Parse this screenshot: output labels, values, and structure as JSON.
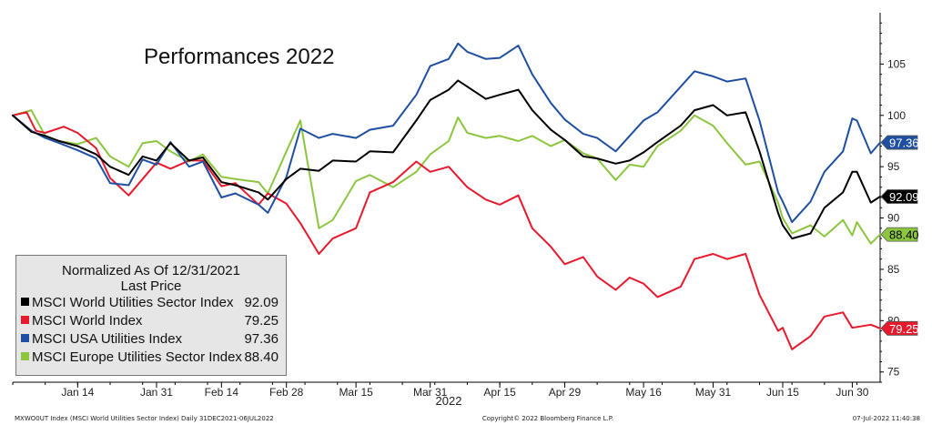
{
  "chart_data": {
    "type": "line",
    "title": "Performances 2022",
    "year_label": "2022",
    "x_tick_labels": [
      "Jan 14",
      "Jan 31",
      "Feb 14",
      "Feb 28",
      "Mar 15",
      "Mar 31",
      "Apr 15",
      "Apr 29",
      "May 16",
      "May 31",
      "Jun 15",
      "Jun 30"
    ],
    "x_tick_dates": [
      "2022-01-14",
      "2022-01-31",
      "2022-02-14",
      "2022-02-28",
      "2022-03-15",
      "2022-03-31",
      "2022-04-15",
      "2022-04-29",
      "2022-05-16",
      "2022-05-31",
      "2022-06-15",
      "2022-06-30"
    ],
    "xlim": [
      "2021-12-31",
      "2022-07-06"
    ],
    "ylim": [
      74,
      110
    ],
    "y_ticks": [
      75,
      80,
      85,
      90,
      95,
      100,
      105
    ],
    "y_axis_side": "right",
    "grid": false,
    "legend": {
      "position": "bottom-left",
      "heading": "Normalized As Of 12/31/2021",
      "subheading": "Last Price"
    },
    "series": [
      {
        "name": "MSCI World Utilities Sector Index",
        "color": "#000000",
        "last_value": "92.09",
        "points": [
          [
            "2021-12-31",
            100
          ],
          [
            "2022-01-04",
            98.4
          ],
          [
            "2022-01-07",
            98.0
          ],
          [
            "2022-01-10",
            97.5
          ],
          [
            "2022-01-14",
            97.0
          ],
          [
            "2022-01-18",
            96.2
          ],
          [
            "2022-01-21",
            95.0
          ],
          [
            "2022-01-25",
            94.2
          ],
          [
            "2022-01-28",
            96.0
          ],
          [
            "2022-01-31",
            95.6
          ],
          [
            "2022-02-03",
            97.3
          ],
          [
            "2022-02-07",
            95.6
          ],
          [
            "2022-02-10",
            95.9
          ],
          [
            "2022-02-14",
            93.5
          ],
          [
            "2022-02-17",
            93.2
          ],
          [
            "2022-02-22",
            92.5
          ],
          [
            "2022-02-24",
            91.8
          ],
          [
            "2022-02-28",
            93.8
          ],
          [
            "2022-03-03",
            94.8
          ],
          [
            "2022-03-07",
            94.6
          ],
          [
            "2022-03-10",
            95.6
          ],
          [
            "2022-03-15",
            95.5
          ],
          [
            "2022-03-18",
            96.5
          ],
          [
            "2022-03-23",
            96.4
          ],
          [
            "2022-03-28",
            99.5
          ],
          [
            "2022-03-31",
            101.5
          ],
          [
            "2022-04-04",
            102.5
          ],
          [
            "2022-04-06",
            103.4
          ],
          [
            "2022-04-08",
            102.8
          ],
          [
            "2022-04-12",
            101.6
          ],
          [
            "2022-04-15",
            102.0
          ],
          [
            "2022-04-19",
            102.5
          ],
          [
            "2022-04-22",
            100.5
          ],
          [
            "2022-04-26",
            98.6
          ],
          [
            "2022-04-29",
            97.6
          ],
          [
            "2022-05-03",
            96.0
          ],
          [
            "2022-05-06",
            95.8
          ],
          [
            "2022-05-10",
            95.3
          ],
          [
            "2022-05-13",
            95.6
          ],
          [
            "2022-05-16",
            96.4
          ],
          [
            "2022-05-19",
            97.4
          ],
          [
            "2022-05-24",
            99.0
          ],
          [
            "2022-05-27",
            100.5
          ],
          [
            "2022-05-31",
            101.0
          ],
          [
            "2022-06-03",
            100.0
          ],
          [
            "2022-06-07",
            100.3
          ],
          [
            "2022-06-10",
            96.5
          ],
          [
            "2022-06-14",
            90.5
          ],
          [
            "2022-06-15",
            89.3
          ],
          [
            "2022-06-17",
            88.0
          ],
          [
            "2022-06-21",
            88.5
          ],
          [
            "2022-06-24",
            91.0
          ],
          [
            "2022-06-28",
            92.5
          ],
          [
            "2022-06-30",
            94.5
          ],
          [
            "2022-07-01",
            94.5
          ],
          [
            "2022-07-04",
            91.5
          ],
          [
            "2022-07-06",
            92.09
          ]
        ]
      },
      {
        "name": "MSCI World Index",
        "color": "#e8192c",
        "last_value": "79.25",
        "points": [
          [
            "2021-12-31",
            100
          ],
          [
            "2022-01-03",
            100.3
          ],
          [
            "2022-01-05",
            98.5
          ],
          [
            "2022-01-07",
            98.3
          ],
          [
            "2022-01-11",
            98.9
          ],
          [
            "2022-01-14",
            98.3
          ],
          [
            "2022-01-18",
            96.8
          ],
          [
            "2022-01-21",
            93.9
          ],
          [
            "2022-01-25",
            92.2
          ],
          [
            "2022-01-28",
            93.8
          ],
          [
            "2022-01-31",
            95.4
          ],
          [
            "2022-02-03",
            94.8
          ],
          [
            "2022-02-07",
            95.6
          ],
          [
            "2022-02-10",
            95.6
          ],
          [
            "2022-02-14",
            93.1
          ],
          [
            "2022-02-17",
            93.4
          ],
          [
            "2022-02-22",
            91.3
          ],
          [
            "2022-02-24",
            92.4
          ],
          [
            "2022-02-28",
            91.4
          ],
          [
            "2022-03-03",
            89.5
          ],
          [
            "2022-03-07",
            86.5
          ],
          [
            "2022-03-10",
            88.0
          ],
          [
            "2022-03-15",
            89.0
          ],
          [
            "2022-03-18",
            92.5
          ],
          [
            "2022-03-23",
            93.5
          ],
          [
            "2022-03-28",
            95.5
          ],
          [
            "2022-03-31",
            94.5
          ],
          [
            "2022-04-04",
            95.0
          ],
          [
            "2022-04-08",
            93.0
          ],
          [
            "2022-04-12",
            91.8
          ],
          [
            "2022-04-15",
            91.3
          ],
          [
            "2022-04-19",
            92.2
          ],
          [
            "2022-04-22",
            89.0
          ],
          [
            "2022-04-26",
            87.2
          ],
          [
            "2022-04-29",
            85.5
          ],
          [
            "2022-05-03",
            86.2
          ],
          [
            "2022-05-06",
            84.3
          ],
          [
            "2022-05-10",
            83.0
          ],
          [
            "2022-05-13",
            84.2
          ],
          [
            "2022-05-16",
            83.6
          ],
          [
            "2022-05-19",
            82.3
          ],
          [
            "2022-05-24",
            83.3
          ],
          [
            "2022-05-27",
            86.0
          ],
          [
            "2022-05-31",
            86.5
          ],
          [
            "2022-06-03",
            86.0
          ],
          [
            "2022-06-07",
            86.5
          ],
          [
            "2022-06-10",
            82.5
          ],
          [
            "2022-06-14",
            79.0
          ],
          [
            "2022-06-15",
            79.3
          ],
          [
            "2022-06-17",
            77.2
          ],
          [
            "2022-06-21",
            78.5
          ],
          [
            "2022-06-24",
            80.4
          ],
          [
            "2022-06-28",
            80.8
          ],
          [
            "2022-06-30",
            79.3
          ],
          [
            "2022-07-04",
            79.6
          ],
          [
            "2022-07-06",
            79.25
          ]
        ]
      },
      {
        "name": "MSCI USA Utilities Index",
        "color": "#1f4fa0",
        "last_value": "97.36",
        "points": [
          [
            "2021-12-31",
            100
          ],
          [
            "2022-01-04",
            98.5
          ],
          [
            "2022-01-07",
            97.8
          ],
          [
            "2022-01-10",
            97.3
          ],
          [
            "2022-01-14",
            96.6
          ],
          [
            "2022-01-18",
            95.8
          ],
          [
            "2022-01-21",
            93.4
          ],
          [
            "2022-01-25",
            93.2
          ],
          [
            "2022-01-28",
            95.7
          ],
          [
            "2022-01-31",
            95.2
          ],
          [
            "2022-02-03",
            97.4
          ],
          [
            "2022-02-07",
            95.0
          ],
          [
            "2022-02-10",
            95.5
          ],
          [
            "2022-02-14",
            92.0
          ],
          [
            "2022-02-17",
            92.4
          ],
          [
            "2022-02-22",
            91.3
          ],
          [
            "2022-02-24",
            90.5
          ],
          [
            "2022-02-28",
            94.0
          ],
          [
            "2022-03-03",
            98.7
          ],
          [
            "2022-03-07",
            97.8
          ],
          [
            "2022-03-10",
            98.2
          ],
          [
            "2022-03-15",
            97.8
          ],
          [
            "2022-03-18",
            98.6
          ],
          [
            "2022-03-23",
            99.0
          ],
          [
            "2022-03-28",
            102.0
          ],
          [
            "2022-03-31",
            104.8
          ],
          [
            "2022-04-04",
            105.5
          ],
          [
            "2022-04-06",
            107.0
          ],
          [
            "2022-04-08",
            106.2
          ],
          [
            "2022-04-12",
            105.5
          ],
          [
            "2022-04-15",
            105.6
          ],
          [
            "2022-04-19",
            106.8
          ],
          [
            "2022-04-22",
            104.0
          ],
          [
            "2022-04-26",
            101.2
          ],
          [
            "2022-04-29",
            99.6
          ],
          [
            "2022-05-03",
            98.2
          ],
          [
            "2022-05-06",
            97.8
          ],
          [
            "2022-05-10",
            96.5
          ],
          [
            "2022-05-13",
            98.0
          ],
          [
            "2022-05-16",
            99.5
          ],
          [
            "2022-05-19",
            100.3
          ],
          [
            "2022-05-24",
            102.8
          ],
          [
            "2022-05-27",
            104.3
          ],
          [
            "2022-05-31",
            103.8
          ],
          [
            "2022-06-03",
            103.3
          ],
          [
            "2022-06-07",
            103.6
          ],
          [
            "2022-06-10",
            99.5
          ],
          [
            "2022-06-14",
            92.5
          ],
          [
            "2022-06-15",
            91.6
          ],
          [
            "2022-06-17",
            89.6
          ],
          [
            "2022-06-21",
            91.6
          ],
          [
            "2022-06-24",
            94.5
          ],
          [
            "2022-06-28",
            96.5
          ],
          [
            "2022-06-30",
            99.7
          ],
          [
            "2022-07-01",
            99.5
          ],
          [
            "2022-07-04",
            96.3
          ],
          [
            "2022-07-06",
            97.36
          ]
        ]
      },
      {
        "name": "MSCI Europe Utilities Sector Index",
        "color": "#8cc63f",
        "last_value": "88.40",
        "points": [
          [
            "2021-12-31",
            100
          ],
          [
            "2022-01-04",
            100.5
          ],
          [
            "2022-01-07",
            98.0
          ],
          [
            "2022-01-10",
            97.5
          ],
          [
            "2022-01-14",
            97.2
          ],
          [
            "2022-01-18",
            97.8
          ],
          [
            "2022-01-21",
            96.0
          ],
          [
            "2022-01-25",
            95.0
          ],
          [
            "2022-01-28",
            97.3
          ],
          [
            "2022-01-31",
            97.5
          ],
          [
            "2022-02-03",
            96.5
          ],
          [
            "2022-02-07",
            95.5
          ],
          [
            "2022-02-10",
            96.2
          ],
          [
            "2022-02-14",
            94.0
          ],
          [
            "2022-02-17",
            93.8
          ],
          [
            "2022-02-22",
            93.5
          ],
          [
            "2022-02-24",
            92.4
          ],
          [
            "2022-02-28",
            96.5
          ],
          [
            "2022-03-03",
            99.5
          ],
          [
            "2022-03-07",
            89.0
          ],
          [
            "2022-03-10",
            89.8
          ],
          [
            "2022-03-15",
            93.6
          ],
          [
            "2022-03-18",
            94.2
          ],
          [
            "2022-03-23",
            93.0
          ],
          [
            "2022-03-28",
            94.5
          ],
          [
            "2022-03-31",
            96.2
          ],
          [
            "2022-04-04",
            97.5
          ],
          [
            "2022-04-06",
            99.8
          ],
          [
            "2022-04-08",
            98.3
          ],
          [
            "2022-04-12",
            97.8
          ],
          [
            "2022-04-15",
            98.0
          ],
          [
            "2022-04-19",
            97.5
          ],
          [
            "2022-04-22",
            98.0
          ],
          [
            "2022-04-26",
            97.0
          ],
          [
            "2022-04-29",
            97.6
          ],
          [
            "2022-05-03",
            96.3
          ],
          [
            "2022-05-06",
            95.8
          ],
          [
            "2022-05-10",
            93.7
          ],
          [
            "2022-05-13",
            95.2
          ],
          [
            "2022-05-16",
            95.0
          ],
          [
            "2022-05-19",
            97.0
          ],
          [
            "2022-05-24",
            98.5
          ],
          [
            "2022-05-27",
            100.0
          ],
          [
            "2022-05-31",
            99.0
          ],
          [
            "2022-06-03",
            97.3
          ],
          [
            "2022-06-07",
            95.2
          ],
          [
            "2022-06-10",
            95.5
          ],
          [
            "2022-06-14",
            91.5
          ],
          [
            "2022-06-15",
            90.0
          ],
          [
            "2022-06-17",
            88.5
          ],
          [
            "2022-06-21",
            89.3
          ],
          [
            "2022-06-24",
            88.2
          ],
          [
            "2022-06-28",
            89.8
          ],
          [
            "2022-06-30",
            88.3
          ],
          [
            "2022-07-01",
            89.6
          ],
          [
            "2022-07-04",
            87.5
          ],
          [
            "2022-07-06",
            88.4
          ]
        ]
      }
    ]
  },
  "footer": {
    "left": "MXWO0UT Index (MSCI World Utilities Sector Index)  Daily 31DEC2021-06JUL2022",
    "center": "Copyright© 2022 Bloomberg Finance L.P.",
    "right": "07-Jul-2022 11:40:38"
  }
}
